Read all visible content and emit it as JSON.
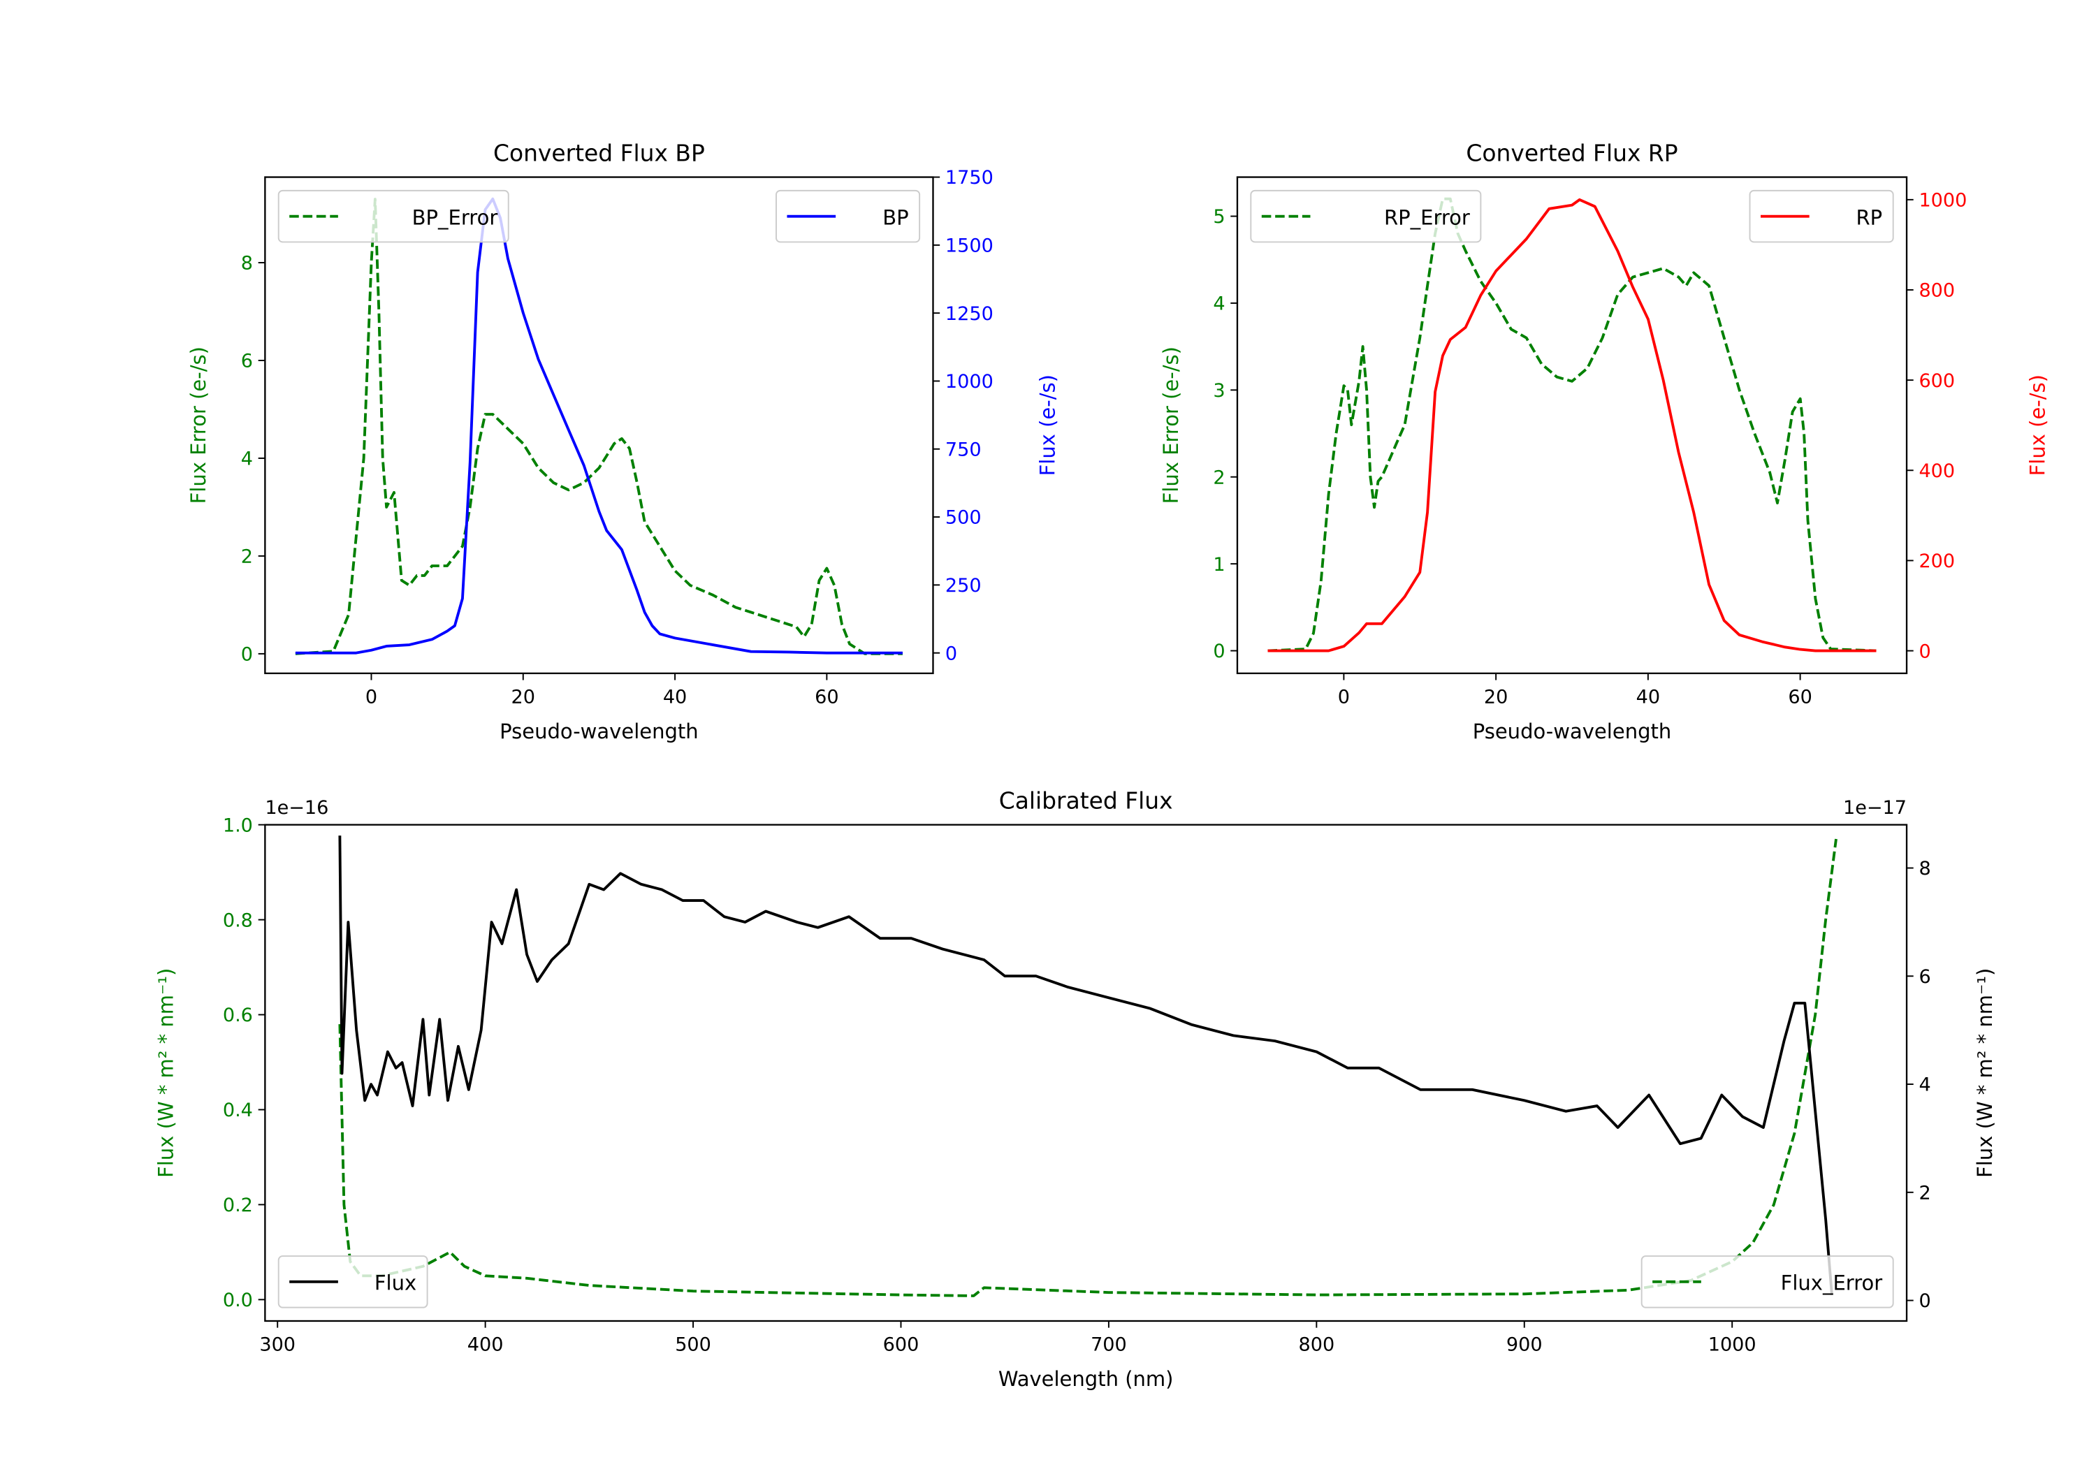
{
  "chart_data": [
    {
      "type": "line",
      "title": "Converted Flux BP",
      "xlabel": "Pseudo-wavelength",
      "ylabel_left": "Flux Error (e-/s)",
      "ylabel_right": "Flux (e-/s)",
      "xlim": [
        -14,
        74
      ],
      "ylim_left": [
        -0.4,
        9.75
      ],
      "ylim_right": [
        -75,
        1750
      ],
      "xticks": [
        "0",
        "20",
        "40",
        "60"
      ],
      "xtick_values": [
        0,
        20,
        40,
        60
      ],
      "yticks_left": [
        "0",
        "2",
        "4",
        "6",
        "8"
      ],
      "ytick_left_values": [
        0,
        2,
        4,
        6,
        8
      ],
      "yticks_right": [
        "0",
        "250",
        "500",
        "750",
        "1000",
        "1250",
        "1500",
        "1750"
      ],
      "ytick_right_values": [
        0,
        250,
        500,
        750,
        1000,
        1250,
        1500,
        1750
      ],
      "left_color": "#008000",
      "right_color": "#0000ff",
      "legend_left": "BP_Error",
      "legend_right": "BP",
      "legend_left_loc": "upper-left",
      "legend_right_loc": "upper-right",
      "series": [
        {
          "name": "BP_Error",
          "axis": "left",
          "style": "dashed",
          "color": "#008000",
          "x": [
            -10,
            -5,
            -3,
            -1,
            0,
            0.5,
            1,
            1.5,
            2,
            3,
            4,
            5,
            6,
            7,
            8,
            10,
            12,
            13,
            14,
            15,
            16,
            18,
            20,
            22,
            24,
            26,
            28,
            30,
            32,
            33,
            34,
            35,
            36,
            38,
            40,
            42,
            45,
            48,
            50,
            52,
            54,
            56,
            57,
            58,
            59,
            60,
            61,
            62,
            63,
            65,
            70
          ],
          "y": [
            0,
            0.05,
            0.8,
            4,
            8,
            9.3,
            7,
            4,
            3,
            3.3,
            1.5,
            1.4,
            1.6,
            1.6,
            1.8,
            1.8,
            2.2,
            3,
            4.2,
            4.9,
            4.9,
            4.6,
            4.3,
            3.8,
            3.5,
            3.35,
            3.5,
            3.8,
            4.3,
            4.4,
            4.2,
            3.5,
            2.7,
            2.2,
            1.7,
            1.4,
            1.2,
            0.95,
            0.85,
            0.75,
            0.65,
            0.55,
            0.35,
            0.6,
            1.5,
            1.75,
            1.4,
            0.6,
            0.2,
            0,
            0
          ]
        },
        {
          "name": "BP",
          "axis": "right",
          "style": "solid",
          "color": "#0000ff",
          "x": [
            -10,
            -2,
            0,
            2,
            5,
            8,
            10,
            11,
            12,
            13,
            14,
            15,
            16,
            17,
            18,
            20,
            22,
            24,
            26,
            28,
            30,
            31,
            33,
            35,
            36,
            37,
            38,
            40,
            42,
            45,
            48,
            50,
            55,
            60,
            70
          ],
          "y": [
            0,
            0,
            10,
            25,
            30,
            50,
            80,
            100,
            200,
            700,
            1400,
            1630,
            1670,
            1600,
            1450,
            1250,
            1080,
            950,
            820,
            690,
            520,
            450,
            380,
            230,
            150,
            100,
            70,
            55,
            45,
            30,
            15,
            5,
            3,
            0,
            0
          ]
        }
      ]
    },
    {
      "type": "line",
      "title": "Converted Flux RP",
      "xlabel": "Pseudo-wavelength",
      "ylabel_left": "Flux Error (e-/s)",
      "ylabel_right": "Flux (e-/s)",
      "xlim": [
        -14,
        74
      ],
      "ylim_left": [
        -0.26,
        5.45
      ],
      "ylim_right": [
        -50,
        1050
      ],
      "xticks": [
        "0",
        "20",
        "40",
        "60"
      ],
      "xtick_values": [
        0,
        20,
        40,
        60
      ],
      "yticks_left": [
        "0",
        "1",
        "2",
        "3",
        "4",
        "5"
      ],
      "ytick_left_values": [
        0,
        1,
        2,
        3,
        4,
        5
      ],
      "yticks_right": [
        "0",
        "200",
        "400",
        "600",
        "800",
        "1000"
      ],
      "ytick_right_values": [
        0,
        200,
        400,
        600,
        800,
        1000
      ],
      "left_color": "#008000",
      "right_color": "#ff0000",
      "legend_left": "RP_Error",
      "legend_right": "RP",
      "legend_left_loc": "upper-left",
      "legend_right_loc": "upper-right",
      "series": [
        {
          "name": "RP_Error",
          "axis": "left",
          "style": "dashed",
          "color": "#008000",
          "x": [
            -10,
            -5,
            -4,
            -3,
            -2,
            -1,
            0,
            0.5,
            1,
            2,
            2.5,
            3,
            3.5,
            4,
            4.5,
            5,
            6,
            7,
            8,
            9,
            10,
            11,
            12,
            13,
            14,
            15,
            16,
            18,
            20,
            22,
            24,
            26,
            28,
            30,
            32,
            34,
            36,
            38,
            40,
            42,
            44,
            45,
            46,
            48,
            50,
            52,
            54,
            56,
            57,
            58,
            59,
            60,
            60.5,
            61,
            62,
            63,
            64,
            70
          ],
          "y": [
            0,
            0.02,
            0.2,
            0.8,
            1.8,
            2.5,
            3.05,
            3.0,
            2.6,
            3.1,
            3.5,
            3.0,
            2.0,
            1.65,
            1.95,
            2.0,
            2.2,
            2.4,
            2.6,
            3.1,
            3.6,
            4.2,
            4.8,
            5.2,
            5.2,
            4.8,
            4.6,
            4.25,
            4.0,
            3.7,
            3.6,
            3.3,
            3.15,
            3.1,
            3.25,
            3.6,
            4.1,
            4.3,
            4.35,
            4.4,
            4.3,
            4.2,
            4.35,
            4.2,
            3.6,
            3.0,
            2.5,
            2.05,
            1.7,
            2.2,
            2.75,
            2.9,
            2.5,
            1.5,
            0.6,
            0.15,
            0.02,
            0
          ]
        },
        {
          "name": "RP",
          "axis": "right",
          "style": "solid",
          "color": "#ff0000",
          "x": [
            -10,
            -2,
            0,
            2,
            3,
            5,
            8,
            10,
            11,
            12,
            13,
            14,
            16,
            18,
            20,
            24,
            27,
            30,
            31,
            33,
            36,
            38,
            40,
            42,
            44,
            46,
            48,
            50,
            52,
            55,
            58,
            60,
            62,
            70
          ],
          "y": [
            0,
            0,
            10,
            40,
            60,
            60,
            120,
            174,
            307,
            574,
            654,
            690,
            717,
            788,
            842,
            913,
            980,
            988,
            1000,
            985,
            886,
            806,
            735,
            600,
            440,
            307,
            147,
            67,
            35,
            20,
            8,
            3,
            0,
            0
          ]
        }
      ]
    },
    {
      "type": "line",
      "title": "Calibrated Flux",
      "xlabel": "Wavelength (nm)",
      "ylabel_left": "Flux (W * m² * nm⁻¹)",
      "ylabel_right": "Flux (W * m² * nm⁻¹)",
      "offset_left": "1e−16",
      "offset_right": "1e−17",
      "xlim": [
        294,
        1084
      ],
      "ylim_left": [
        -0.045,
        1.0
      ],
      "ylim_right": [
        -0.38,
        8.8
      ],
      "xticks": [
        "300",
        "400",
        "500",
        "600",
        "700",
        "800",
        "900",
        "1000"
      ],
      "xtick_values": [
        300,
        400,
        500,
        600,
        700,
        800,
        900,
        1000
      ],
      "yticks_left": [
        "0.0",
        "0.2",
        "0.4",
        "0.6",
        "0.8",
        "1.0"
      ],
      "ytick_left_values": [
        0,
        0.2,
        0.4,
        0.6,
        0.8,
        1.0
      ],
      "yticks_right": [
        "0",
        "2",
        "4",
        "6",
        "8"
      ],
      "ytick_right_values": [
        0,
        2,
        4,
        6,
        8
      ],
      "left_color": "#008000",
      "right_color": "#000000",
      "legend_left": "Flux",
      "legend_right": "Flux_Error",
      "legend_left_loc": "lower-left",
      "legend_right_loc": "lower-right",
      "series": [
        {
          "name": "Flux_Error",
          "axis": "left",
          "style": "dashed",
          "color": "#008000",
          "x": [
            330,
            332,
            335,
            340,
            350,
            370,
            383,
            390,
            400,
            420,
            450,
            500,
            600,
            635,
            640,
            700,
            800,
            900,
            950,
            980,
            1000,
            1010,
            1020,
            1030,
            1040,
            1045,
            1050
          ],
          "y": [
            0.58,
            0.2,
            0.08,
            0.05,
            0.05,
            0.07,
            0.1,
            0.07,
            0.05,
            0.045,
            0.03,
            0.018,
            0.01,
            0.008,
            0.025,
            0.015,
            0.01,
            0.012,
            0.02,
            0.04,
            0.08,
            0.12,
            0.2,
            0.35,
            0.6,
            0.8,
            0.97
          ]
        },
        {
          "name": "Flux",
          "axis": "right",
          "style": "solid",
          "color": "#000000",
          "x": [
            330,
            331,
            334,
            338,
            342,
            345,
            348,
            353,
            357,
            360,
            365,
            370,
            373,
            378,
            382,
            387,
            392,
            398,
            403,
            408,
            415,
            420,
            425,
            432,
            440,
            450,
            457,
            465,
            475,
            485,
            495,
            505,
            515,
            525,
            535,
            550,
            560,
            575,
            590,
            605,
            620,
            640,
            650,
            665,
            680,
            700,
            720,
            740,
            760,
            780,
            800,
            815,
            830,
            850,
            875,
            900,
            920,
            935,
            945,
            960,
            975,
            985,
            995,
            1005,
            1015,
            1025,
            1030,
            1035,
            1040,
            1045,
            1048
          ],
          "y": [
            8.6,
            4.2,
            7.0,
            5.0,
            3.7,
            4.0,
            3.8,
            4.6,
            4.3,
            4.4,
            3.6,
            5.2,
            3.8,
            5.2,
            3.7,
            4.7,
            3.9,
            5.0,
            7.0,
            6.6,
            7.6,
            6.4,
            5.9,
            6.3,
            6.6,
            7.7,
            7.6,
            7.9,
            7.7,
            7.6,
            7.4,
            7.4,
            7.1,
            7.0,
            7.2,
            7.0,
            6.9,
            7.1,
            6.7,
            6.7,
            6.5,
            6.3,
            6.0,
            6.0,
            5.8,
            5.6,
            5.4,
            5.1,
            4.9,
            4.8,
            4.6,
            4.3,
            4.3,
            3.9,
            3.9,
            3.7,
            3.5,
            3.6,
            3.2,
            3.8,
            2.9,
            3.0,
            3.8,
            3.4,
            3.2,
            4.8,
            5.5,
            5.5,
            3.5,
            1.5,
            0.1
          ]
        }
      ]
    }
  ]
}
